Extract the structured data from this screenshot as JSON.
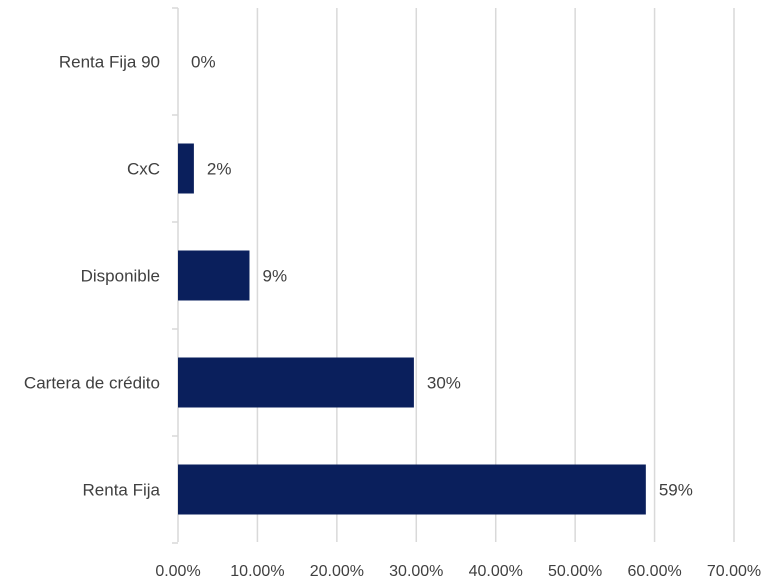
{
  "chart_data": {
    "type": "bar",
    "orientation": "horizontal",
    "categories": [
      "Renta Fija 90",
      "CxC",
      "Disponible",
      "Cartera de crédito",
      "Renta Fija"
    ],
    "values": [
      0.0,
      2.0,
      9.0,
      29.7,
      58.9
    ],
    "data_labels": [
      "0%",
      "2%",
      "9%",
      "30%",
      "59%"
    ],
    "xlim": [
      0,
      70
    ],
    "x_ticks": [
      0,
      10,
      20,
      30,
      40,
      50,
      60,
      70
    ],
    "x_tick_labels": [
      "0.00%",
      "10.00%",
      "20.00%",
      "30.00%",
      "40.00%",
      "50.00%",
      "60.00%",
      "70.00%"
    ],
    "grid": "vertical",
    "legend": "none",
    "bar_color": "#0a1f5c",
    "grid_color": "#d9d9d9"
  }
}
